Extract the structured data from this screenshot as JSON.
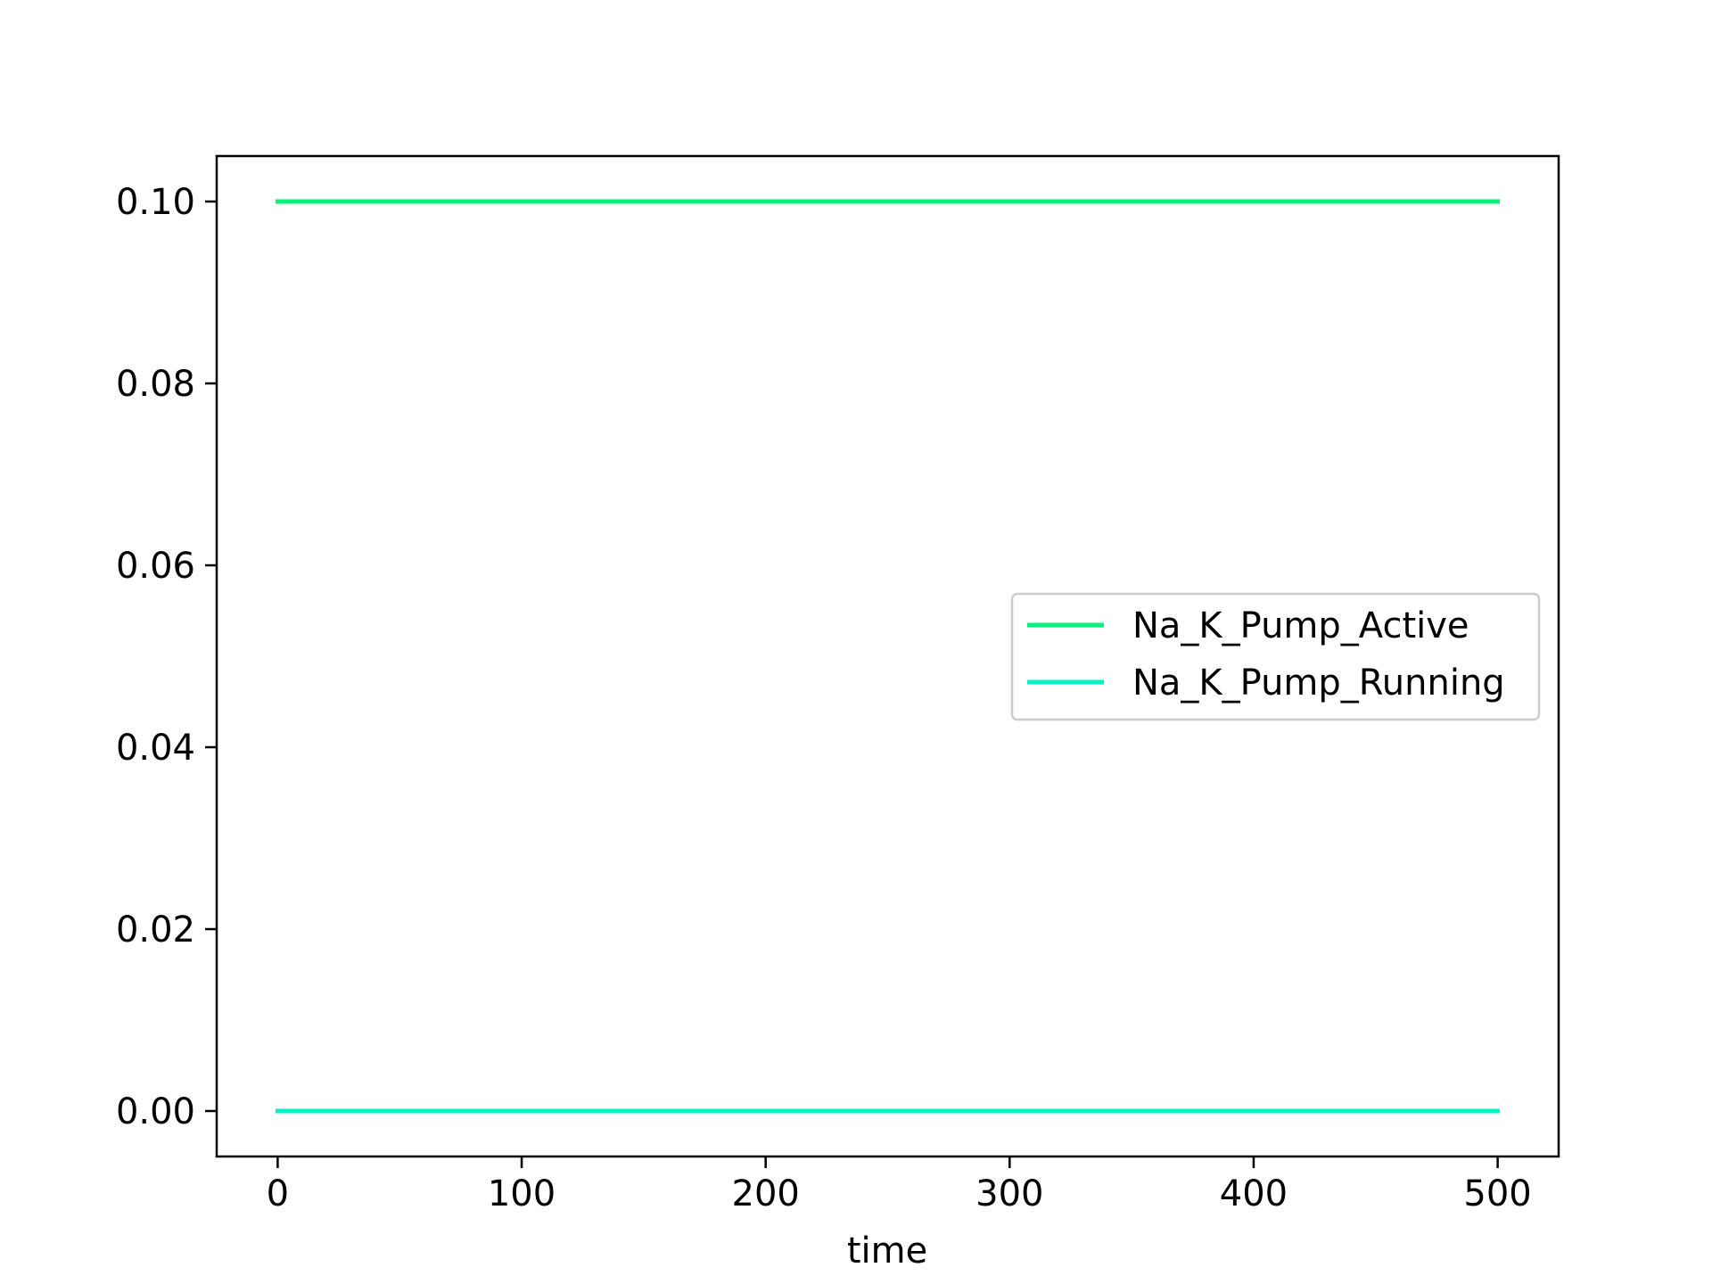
{
  "chart_data": {
    "type": "line",
    "title": "",
    "xlabel": "time",
    "ylabel": "",
    "xlim": [
      -25,
      525
    ],
    "ylim": [
      -0.005,
      0.105
    ],
    "x_ticks": [
      0,
      100,
      200,
      300,
      400,
      500
    ],
    "x_tick_labels": [
      "0",
      "100",
      "200",
      "300",
      "400",
      "500"
    ],
    "y_ticks": [
      0.0,
      0.02,
      0.04,
      0.06,
      0.08,
      0.1
    ],
    "y_tick_labels": [
      "0.00",
      "0.02",
      "0.04",
      "0.06",
      "0.08",
      "0.10"
    ],
    "grid": false,
    "legend_position": "center-right",
    "series": [
      {
        "name": "Na_K_Pump_Active",
        "color": "#00f57a",
        "x": [
          0,
          500
        ],
        "y": [
          0.1,
          0.1
        ]
      },
      {
        "name": "Na_K_Pump_Running",
        "color": "#00f5c4",
        "x": [
          0,
          500
        ],
        "y": [
          0.0,
          0.0
        ]
      }
    ]
  }
}
